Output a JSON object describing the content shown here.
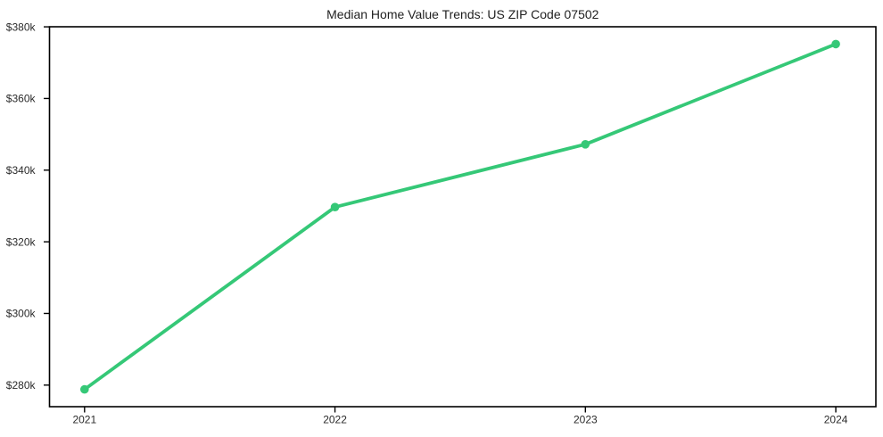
{
  "chart_data": {
    "type": "line",
    "title": "Median Home Value Trends: US ZIP Code 07502",
    "x": [
      2021,
      2022,
      2023,
      2024
    ],
    "x_tick_labels": [
      "2021",
      "2022",
      "2023",
      "2024"
    ],
    "values": [
      278800,
      329700,
      347200,
      375200
    ],
    "y_ticks": [
      {
        "value": 280000,
        "label": "$280k"
      },
      {
        "value": 300000,
        "label": "$300k"
      },
      {
        "value": 320000,
        "label": "$320k"
      },
      {
        "value": 340000,
        "label": "$340k"
      },
      {
        "value": 360000,
        "label": "$360k"
      },
      {
        "value": 380000,
        "label": "$380k"
      }
    ],
    "xlabel": "",
    "ylabel": "",
    "xlim": [
      2020.86,
      2024.16
    ],
    "ylim": [
      273980,
      380020
    ],
    "grid": false,
    "legend": "none",
    "line_color": "#35c877",
    "marker": "circle",
    "axis_color": "#000000",
    "tick_label_color": "#2b2b2b",
    "title_color": "#1f1f1f",
    "background": "#ffffff"
  }
}
